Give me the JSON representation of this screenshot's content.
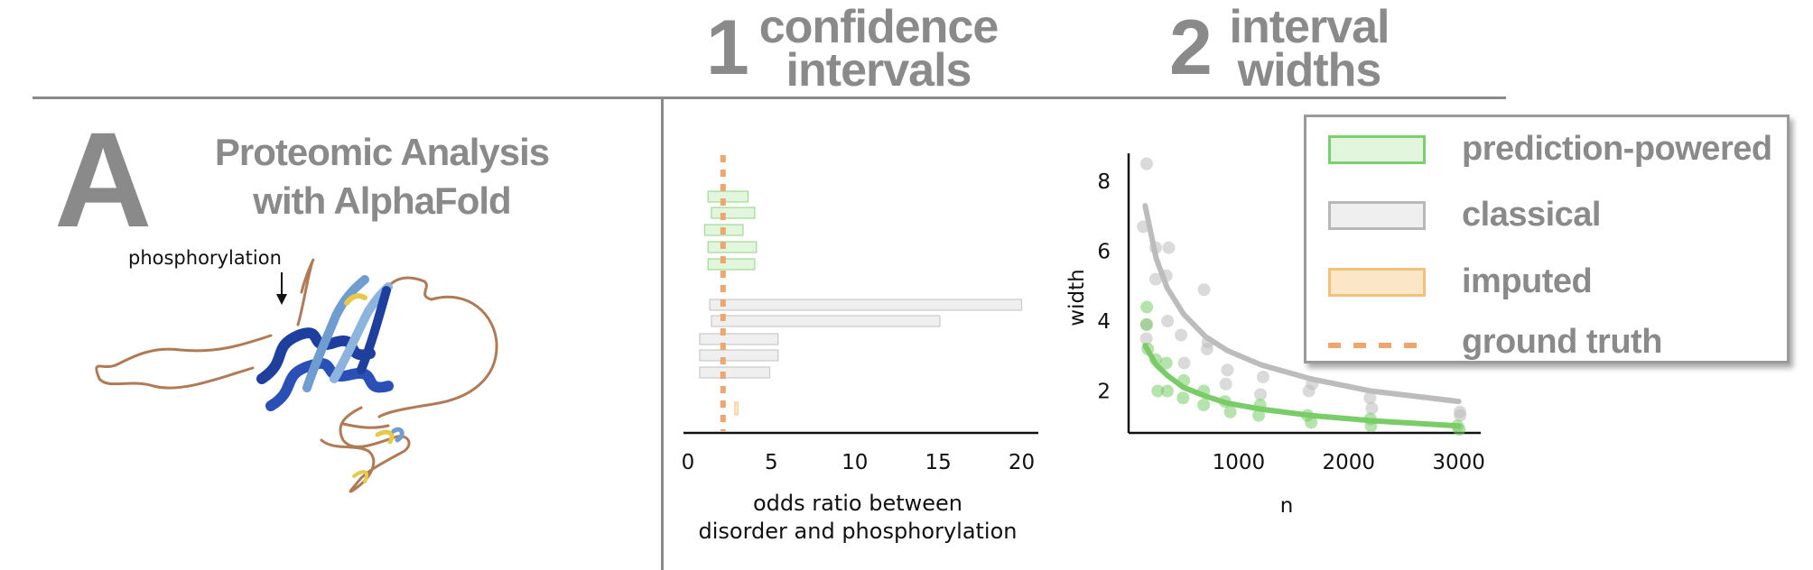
{
  "header": {
    "section1_number": "1",
    "section1_title_line1": "confidence",
    "section1_title_line2": "intervals",
    "section2_number": "2",
    "section2_title_line1": "interval",
    "section2_title_line2": "widths"
  },
  "panel": {
    "letter": "A",
    "title_line1": "Proteomic Analysis",
    "title_line2": "with AlphaFold",
    "annotation": "phosphorylation"
  },
  "colors": {
    "prediction_powered": "#7ccf6f",
    "prediction_powered_fill": "#e2f5dd",
    "classical": "#b9b7b7",
    "classical_fill": "#efefef",
    "imputed": "#f2c27a",
    "imputed_fill": "#fbe6c7",
    "ground_truth": "#eea66e",
    "rules": "#8a8a8a"
  },
  "legend": {
    "items": [
      {
        "label": "prediction-powered",
        "kind": "box",
        "color_key": "prediction_powered"
      },
      {
        "label": "classical",
        "kind": "box",
        "color_key": "classical"
      },
      {
        "label": "imputed",
        "kind": "box",
        "color_key": "imputed"
      },
      {
        "label": "ground truth",
        "kind": "dashed",
        "color_key": "ground_truth"
      }
    ]
  },
  "chart_data": [
    {
      "type": "interval",
      "xlabel_line1": "odds ratio between",
      "xlabel_line2": "disorder and phosphorylation",
      "xlim": [
        0,
        21
      ],
      "xticks": [
        0,
        5,
        10,
        15,
        20
      ],
      "ground_truth": 2.1,
      "intervals": [
        {
          "method": "prediction-powered",
          "lo": 1.2,
          "hi": 3.6
        },
        {
          "method": "prediction-powered",
          "lo": 1.4,
          "hi": 4.0
        },
        {
          "method": "prediction-powered",
          "lo": 1.0,
          "hi": 3.3
        },
        {
          "method": "prediction-powered",
          "lo": 1.2,
          "hi": 4.1
        },
        {
          "method": "prediction-powered",
          "lo": 1.2,
          "hi": 4.0
        },
        {
          "method": "classical",
          "lo": 1.3,
          "hi": 20.0
        },
        {
          "method": "classical",
          "lo": 1.4,
          "hi": 15.1
        },
        {
          "method": "classical",
          "lo": 0.7,
          "hi": 5.4
        },
        {
          "method": "classical",
          "lo": 0.7,
          "hi": 5.4
        },
        {
          "method": "classical",
          "lo": 0.7,
          "hi": 4.9
        },
        {
          "method": "imputed",
          "lo": 2.8,
          "hi": 3.0
        }
      ]
    },
    {
      "type": "scatter",
      "xlabel": "n",
      "ylabel": "width",
      "xlim": [
        0,
        3200
      ],
      "ylim": [
        0.8,
        8.8
      ],
      "xticks": [
        1000,
        2000,
        3000
      ],
      "yticks": [
        2,
        4,
        6,
        8
      ],
      "series": [
        {
          "name": "classical",
          "points": [
            [
              150,
              8.5
            ],
            [
              150,
              6.7
            ],
            [
              150,
              3.9
            ],
            [
              150,
              3.5
            ],
            [
              250,
              6.1
            ],
            [
              250,
              5.2
            ],
            [
              350,
              6.1
            ],
            [
              350,
              5.3
            ],
            [
              350,
              4.0
            ],
            [
              500,
              3.6
            ],
            [
              500,
              2.8
            ],
            [
              700,
              4.9
            ],
            [
              700,
              3.4
            ],
            [
              700,
              3.2
            ],
            [
              900,
              2.6
            ],
            [
              900,
              2.2
            ],
            [
              1200,
              2.4
            ],
            [
              1200,
              1.9
            ],
            [
              1650,
              2.2
            ],
            [
              1650,
              2.0
            ],
            [
              2200,
              1.8
            ],
            [
              2200,
              1.5
            ],
            [
              3000,
              1.4
            ],
            [
              3000,
              1.3
            ]
          ],
          "curve": [
            [
              150,
              7.3
            ],
            [
              250,
              5.8
            ],
            [
              350,
              4.95
            ],
            [
              500,
              4.2
            ],
            [
              700,
              3.55
            ],
            [
              900,
              3.15
            ],
            [
              1200,
              2.75
            ],
            [
              1650,
              2.35
            ],
            [
              2200,
              2.0
            ],
            [
              3000,
              1.7
            ]
          ]
        },
        {
          "name": "prediction-powered",
          "points": [
            [
              150,
              4.4
            ],
            [
              150,
              3.9
            ],
            [
              150,
              3.2
            ],
            [
              250,
              2.9
            ],
            [
              250,
              2.0
            ],
            [
              350,
              2.8
            ],
            [
              350,
              2.0
            ],
            [
              500,
              2.3
            ],
            [
              500,
              1.8
            ],
            [
              700,
              2.0
            ],
            [
              700,
              1.6
            ],
            [
              900,
              1.7
            ],
            [
              900,
              1.4
            ],
            [
              1200,
              1.6
            ],
            [
              1200,
              1.3
            ],
            [
              1650,
              1.3
            ],
            [
              1650,
              1.1
            ],
            [
              2200,
              1.2
            ],
            [
              2200,
              1.0
            ],
            [
              3000,
              1.0
            ],
            [
              3000,
              0.9
            ]
          ],
          "curve": [
            [
              150,
              3.3
            ],
            [
              250,
              2.75
            ],
            [
              350,
              2.45
            ],
            [
              500,
              2.1
            ],
            [
              700,
              1.85
            ],
            [
              900,
              1.65
            ],
            [
              1200,
              1.48
            ],
            [
              1650,
              1.3
            ],
            [
              2200,
              1.15
            ],
            [
              3000,
              1.0
            ]
          ]
        }
      ]
    }
  ]
}
